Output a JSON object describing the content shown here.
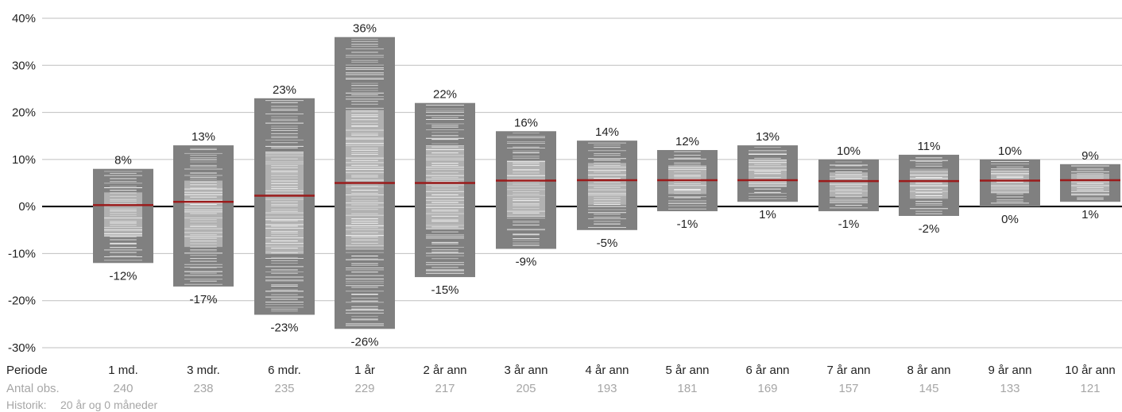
{
  "chart_data": {
    "type": "bar",
    "description_free": true,
    "y_ticks": [
      "40%",
      "30%",
      "20%",
      "10%",
      "0%",
      "-10%",
      "-20%",
      "-30%"
    ],
    "ylim": [
      -30,
      40
    ],
    "grid": true,
    "row_label_period": "Periode",
    "row_label_obs": "Antal obs.",
    "history_label": "Historik:",
    "history_value": "20 år og 0 måneder",
    "categories": [
      "1 md.",
      "3 mdr.",
      "6 mdr.",
      "1 år",
      "2 år ann",
      "3 år ann",
      "4 år ann",
      "5 år ann",
      "6 år ann",
      "7 år ann",
      "8 år ann",
      "9 år ann",
      "10 år ann"
    ],
    "observations": [
      "240",
      "238",
      "235",
      "229",
      "217",
      "205",
      "193",
      "181",
      "169",
      "157",
      "145",
      "133",
      "121"
    ],
    "max_values": [
      8,
      13,
      23,
      36,
      22,
      16,
      14,
      12,
      13,
      10,
      11,
      10,
      9
    ],
    "min_values": [
      -12,
      -17,
      -23,
      -26,
      -15,
      -9,
      -5,
      -1,
      1,
      -1,
      -2,
      0,
      1
    ],
    "max_labels": [
      "8%",
      "13%",
      "23%",
      "36%",
      "22%",
      "16%",
      "14%",
      "12%",
      "13%",
      "10%",
      "11%",
      "10%",
      "9%"
    ],
    "min_labels": [
      "-12%",
      "-17%",
      "-23%",
      "-26%",
      "-15%",
      "-9%",
      "-5%",
      "-1%",
      "1%",
      "-1%",
      "-2%",
      "0%",
      "1%"
    ],
    "median_values": [
      0.3,
      1.0,
      2.3,
      5.0,
      5.0,
      5.5,
      5.6,
      5.6,
      5.6,
      5.4,
      5.4,
      5.5,
      5.6
    ],
    "colors": {
      "bar": "#808080",
      "inner_band": "#d9d9d9",
      "obs_line": "#ffffff",
      "median": "#9b1b1b",
      "zero_line": "#000000",
      "grid": "#bfbfbf",
      "obs_text": "#a6a6a6"
    }
  }
}
